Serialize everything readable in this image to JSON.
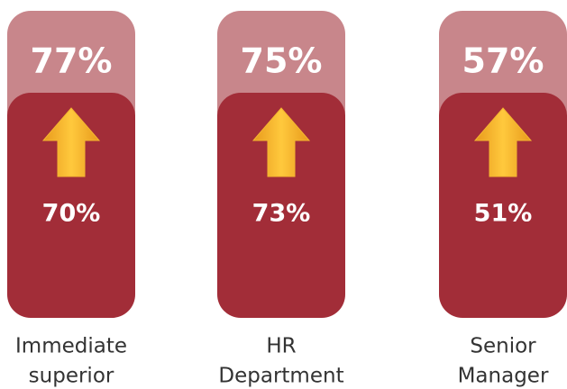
{
  "chart_data": {
    "type": "cards",
    "categories": [
      [
        "Immediate",
        "superior"
      ],
      [
        "HR",
        "Department"
      ],
      [
        "Senior",
        "Manager"
      ]
    ],
    "series": [
      {
        "color": "#c8868b",
        "values": [
          77,
          75,
          57
        ],
        "value_labels": [
          "77%",
          "75%",
          "57%"
        ]
      },
      {
        "color": "#a22d38",
        "values": [
          70,
          73,
          51
        ],
        "value_labels": [
          "70%",
          "73%",
          "51%"
        ]
      }
    ],
    "arrow_color": "#f4b630"
  }
}
